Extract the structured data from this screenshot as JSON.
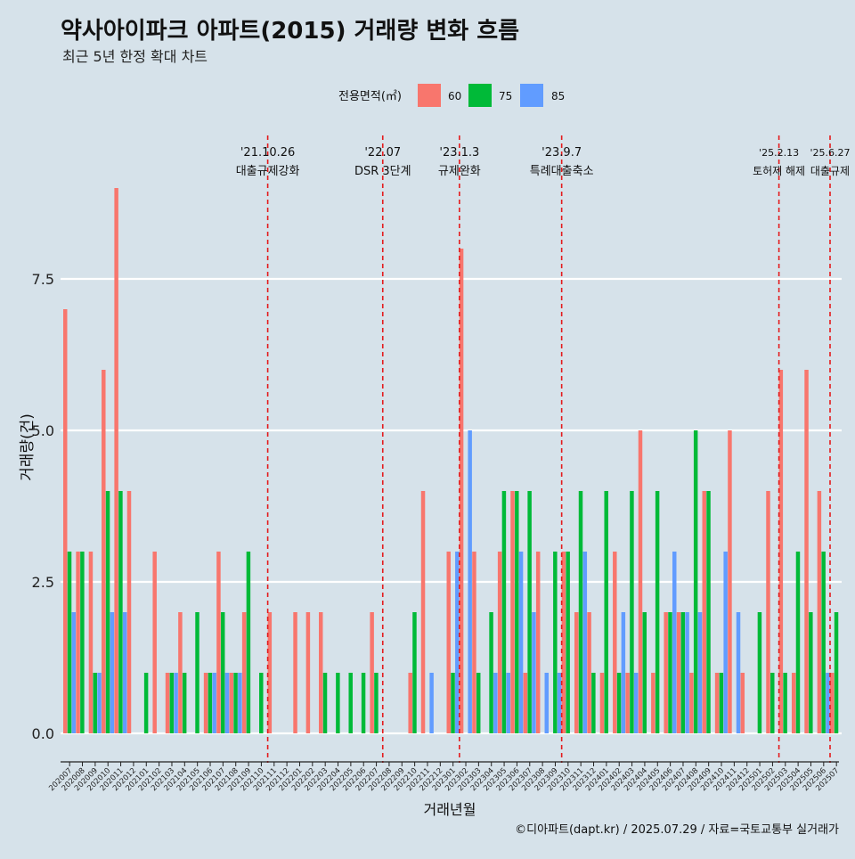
{
  "title": "약사아이파크 아파트(2015) 거래량 변화 흐름",
  "subtitle": "최근 5년 한정 확대 차트",
  "caption": "©디아파트(dapt.kr) / 2025.07.29 / 자료=국토교통부 실거래가",
  "colors": {
    "background": "#d6e2ea",
    "s60": "#f8766d",
    "s75": "#00ba38",
    "s85": "#619cff",
    "vline": "#e41a1c"
  },
  "chart_data": {
    "type": "bar",
    "xlabel": "거래년월",
    "ylabel": "거래량(건)",
    "ylim": [
      0,
      9
    ],
    "yticks": [
      "0.0",
      "2.5",
      "5.0",
      "7.5"
    ],
    "legend": {
      "title": "전용면적(㎡)",
      "entries": [
        "60",
        "75",
        "85"
      ],
      "position": "top"
    },
    "categories": [
      "202007",
      "202008",
      "202009",
      "202010",
      "202011",
      "202012",
      "202101",
      "202102",
      "202103",
      "202104",
      "202105",
      "202106",
      "202107",
      "202108",
      "202109",
      "202110",
      "202111",
      "202112",
      "202201",
      "202202",
      "202203",
      "202204",
      "202205",
      "202206",
      "202207",
      "202208",
      "202209",
      "202210",
      "202211",
      "202212",
      "202301",
      "202302",
      "202303",
      "202304",
      "202305",
      "202306",
      "202307",
      "202308",
      "202309",
      "202310",
      "202311",
      "202312",
      "202401",
      "202402",
      "202403",
      "202404",
      "202405",
      "202406",
      "202407",
      "202408",
      "202409",
      "202410",
      "202411",
      "202412",
      "202501",
      "202502",
      "202503",
      "202504",
      "202505",
      "202506",
      "202507"
    ],
    "series": [
      {
        "name": "60",
        "values": [
          7,
          3,
          3,
          6,
          9,
          4,
          0,
          3,
          1,
          2,
          0,
          1,
          3,
          1,
          2,
          0,
          2,
          0,
          2,
          2,
          2,
          0,
          0,
          0,
          2,
          0,
          0,
          1,
          4,
          0,
          3,
          8,
          3,
          0,
          3,
          4,
          1,
          3,
          0,
          3,
          2,
          2,
          1,
          3,
          1,
          5,
          1,
          2,
          2,
          1,
          4,
          1,
          5,
          1,
          0,
          4,
          6,
          1,
          6,
          4,
          1
        ]
      },
      {
        "name": "75",
        "values": [
          3,
          3,
          1,
          4,
          4,
          0,
          1,
          0,
          1,
          1,
          2,
          1,
          2,
          1,
          3,
          1,
          0,
          0,
          0,
          0,
          1,
          1,
          1,
          1,
          1,
          0,
          0,
          2,
          0,
          0,
          1,
          0,
          1,
          2,
          4,
          4,
          4,
          0,
          3,
          3,
          4,
          1,
          4,
          1,
          4,
          2,
          4,
          2,
          2,
          5,
          4,
          1,
          0,
          0,
          2,
          1,
          1,
          3,
          2,
          3,
          2
        ]
      },
      {
        "name": "85",
        "values": [
          2,
          0,
          1,
          2,
          2,
          0,
          0,
          0,
          1,
          0,
          0,
          1,
          1,
          1,
          0,
          0,
          0,
          0,
          0,
          0,
          0,
          0,
          0,
          0,
          0,
          0,
          0,
          0,
          1,
          0,
          3,
          5,
          0,
          1,
          1,
          3,
          2,
          1,
          1,
          0,
          3,
          0,
          0,
          2,
          1,
          0,
          0,
          3,
          2,
          2,
          0,
          3,
          2,
          0,
          0,
          0,
          0,
          0,
          0,
          1,
          0
        ]
      }
    ],
    "events": [
      {
        "after": "202110",
        "date": "'21.10.26",
        "label": "대출규제강화"
      },
      {
        "after": "202207",
        "date": "'22.07",
        "label": "DSR 3단계"
      },
      {
        "after": "202301",
        "date": "'23.1.3",
        "label": "규제완화"
      },
      {
        "after": "202309",
        "date": "'23.9.7",
        "label": "특례대출축소"
      },
      {
        "after": "202502",
        "date": "'25.2.13",
        "label": "토허제 해제"
      },
      {
        "after": "202506",
        "date": "'25.6.27",
        "label": "대출규제"
      }
    ]
  }
}
